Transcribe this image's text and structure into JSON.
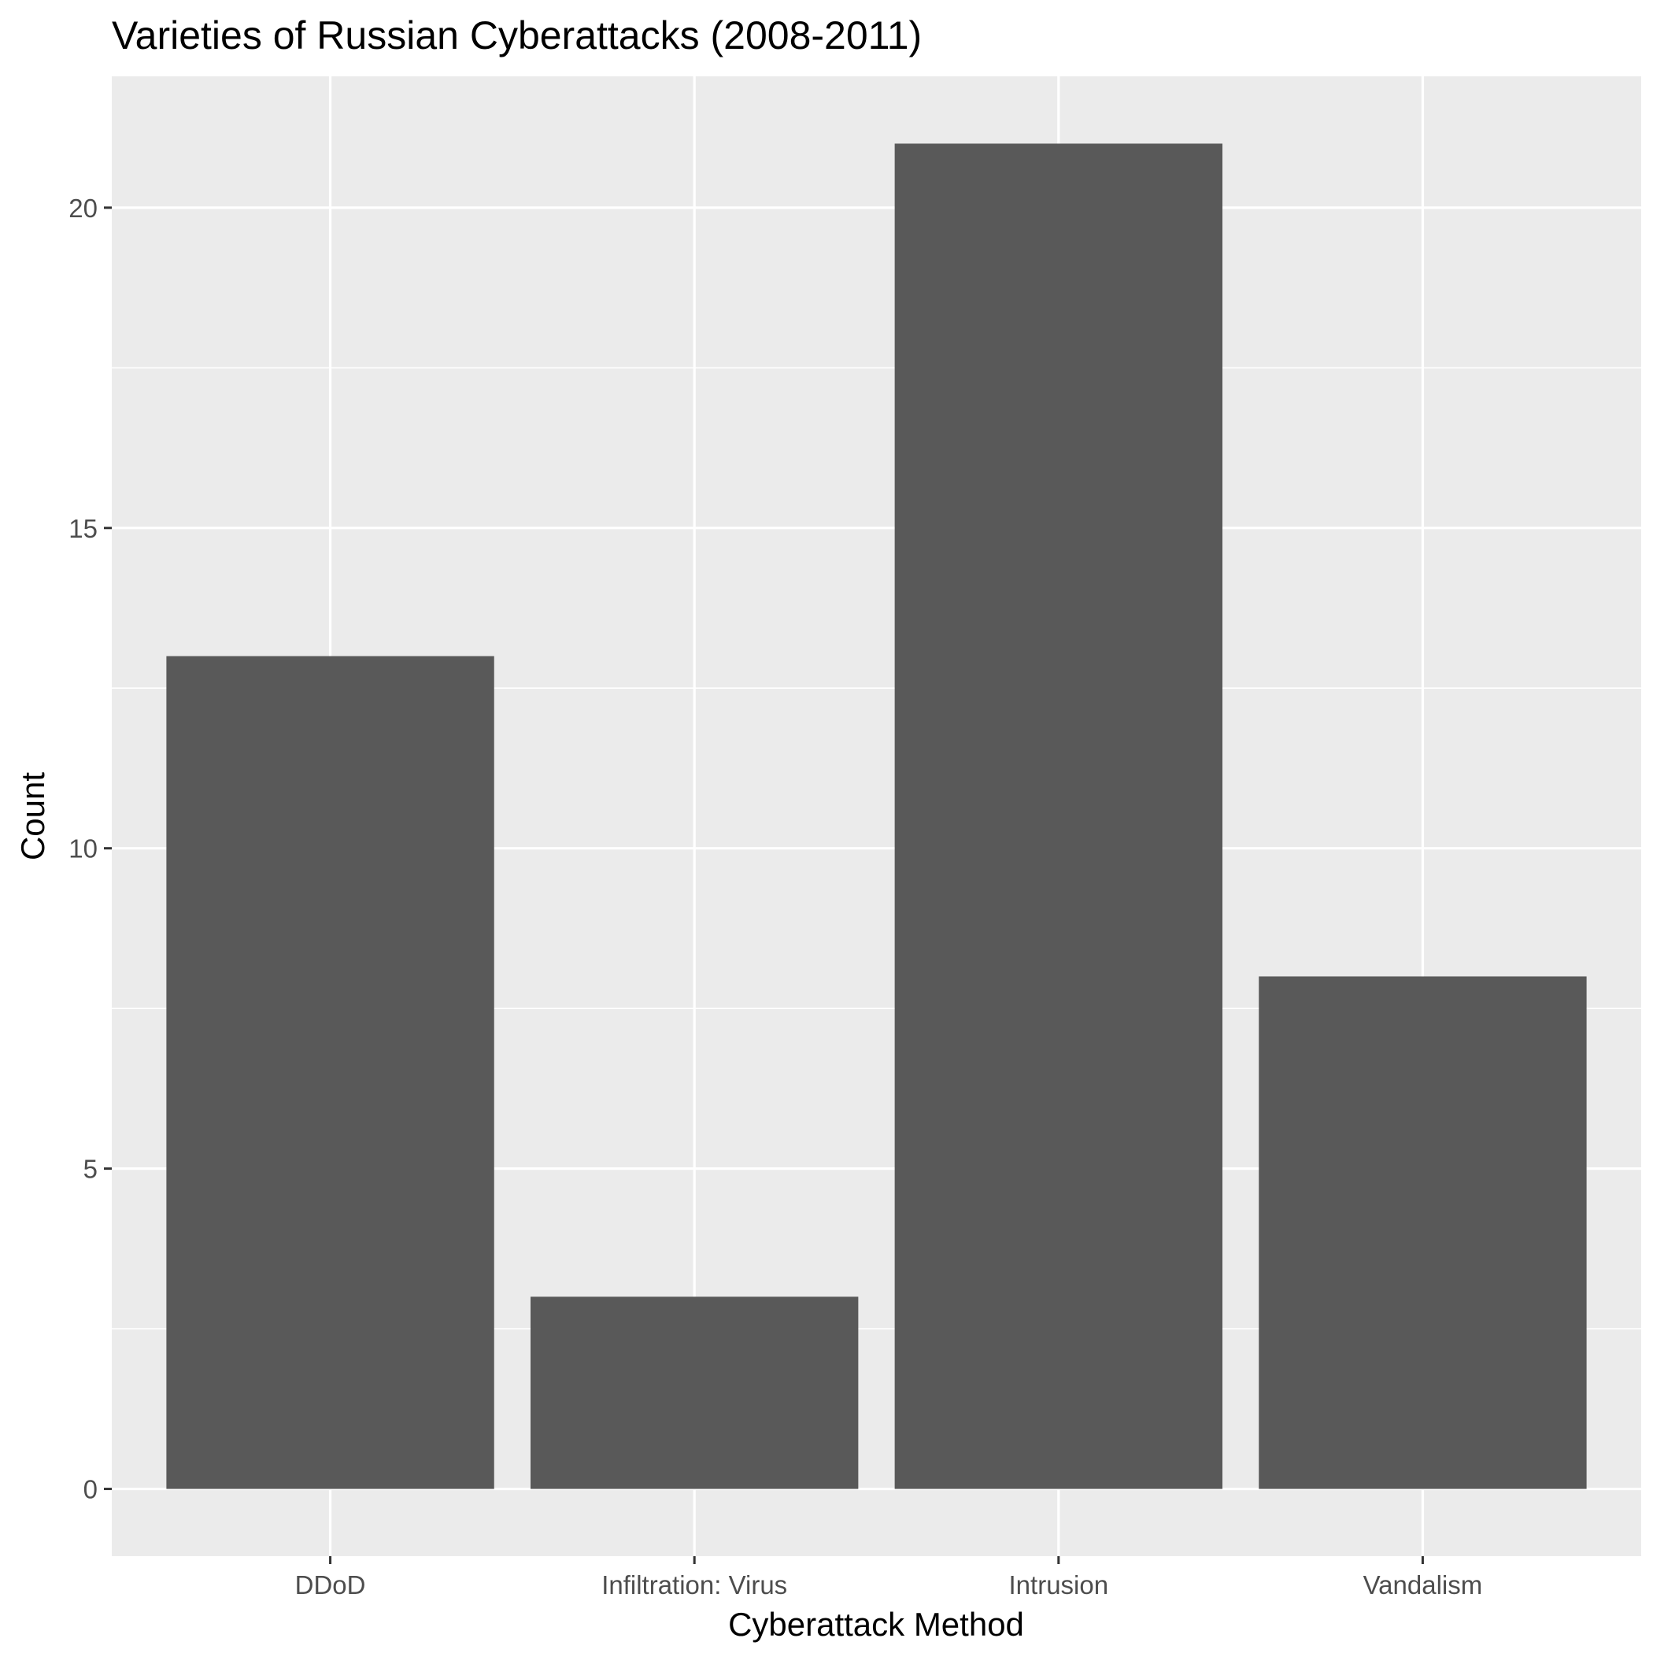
{
  "chart_data": {
    "type": "bar",
    "title": "Varieties of Russian Cyberattacks (2008-2011)",
    "xlabel": "Cyberattack Method",
    "ylabel": "Count",
    "categories": [
      "DDoD",
      "Infiltration: Virus",
      "Intrusion",
      "Vandalism"
    ],
    "values": [
      13,
      3,
      21,
      8
    ],
    "ylim": [
      -1.05,
      22.05
    ],
    "yticks": [
      0,
      5,
      10,
      15,
      20
    ],
    "grid": true,
    "legend": "none",
    "colors": {
      "bar": "#595959",
      "panel": "#ebebeb",
      "grid": "#ffffff"
    }
  }
}
